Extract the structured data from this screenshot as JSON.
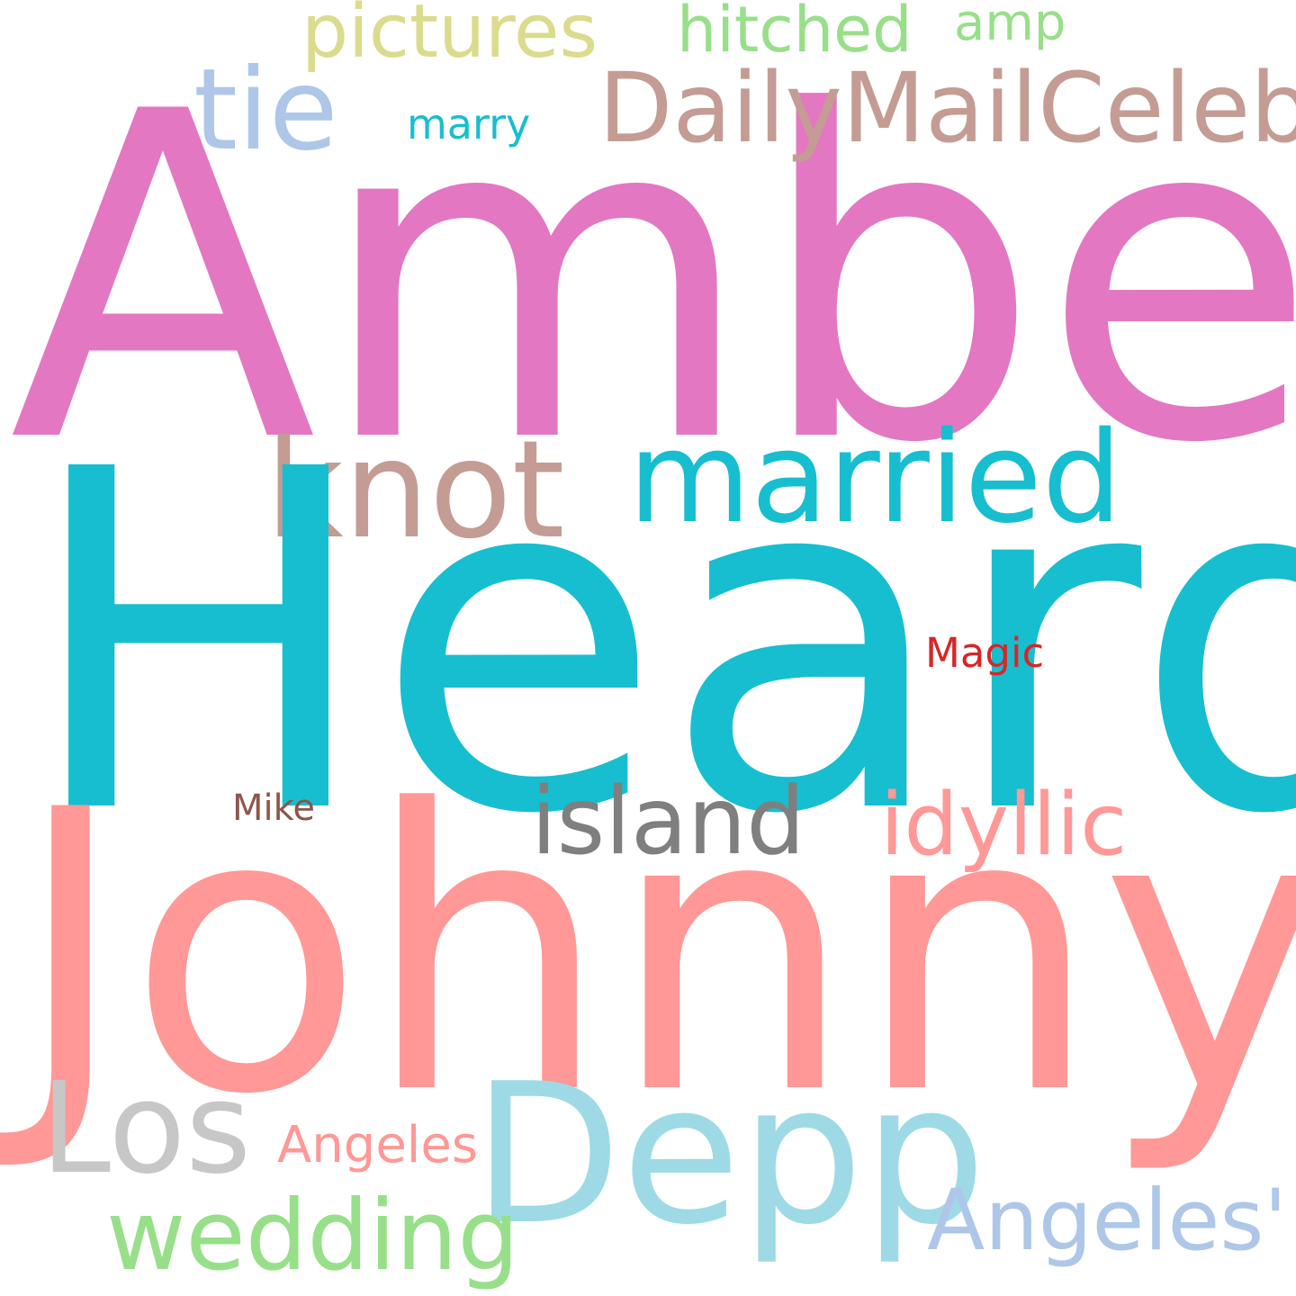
{
  "words": {
    "amber": {
      "text": "Amber",
      "color": "#e377c2"
    },
    "heard": {
      "text": "Heard",
      "color": "#17becf"
    },
    "johnny": {
      "text": "Johnny",
      "color": "#ff9896"
    },
    "depp": {
      "text": "Depp",
      "color": "#9edae5"
    },
    "los": {
      "text": "Los",
      "color": "#c7c7c7"
    },
    "knot": {
      "text": "knot",
      "color": "#c49c94"
    },
    "married": {
      "text": "married",
      "color": "#17becf"
    },
    "daily": {
      "text": "DailyMailCeleb",
      "color": "#c49c94"
    },
    "tie": {
      "text": "tie",
      "color": "#aec7e8"
    },
    "pictures": {
      "text": "pictures",
      "color": "#dbdb8d"
    },
    "hitched": {
      "text": "hitched",
      "color": "#98df8a"
    },
    "amp": {
      "text": "amp",
      "color": "#98df8a"
    },
    "marry": {
      "text": "marry",
      "color": "#17becf"
    },
    "island": {
      "text": "island",
      "color": "#7f7f7f"
    },
    "idyllic": {
      "text": "idyllic",
      "color": "#ff9896"
    },
    "magic": {
      "text": "Magic",
      "color": "#d62728"
    },
    "mike": {
      "text": "Mike",
      "color": "#8c564b"
    },
    "angeles": {
      "text": "Angeles",
      "color": "#ff9896"
    },
    "angelesq": {
      "text": "Angeles'",
      "color": "#aec7e8"
    },
    "wedding": {
      "text": "wedding",
      "color": "#98df8a"
    }
  }
}
